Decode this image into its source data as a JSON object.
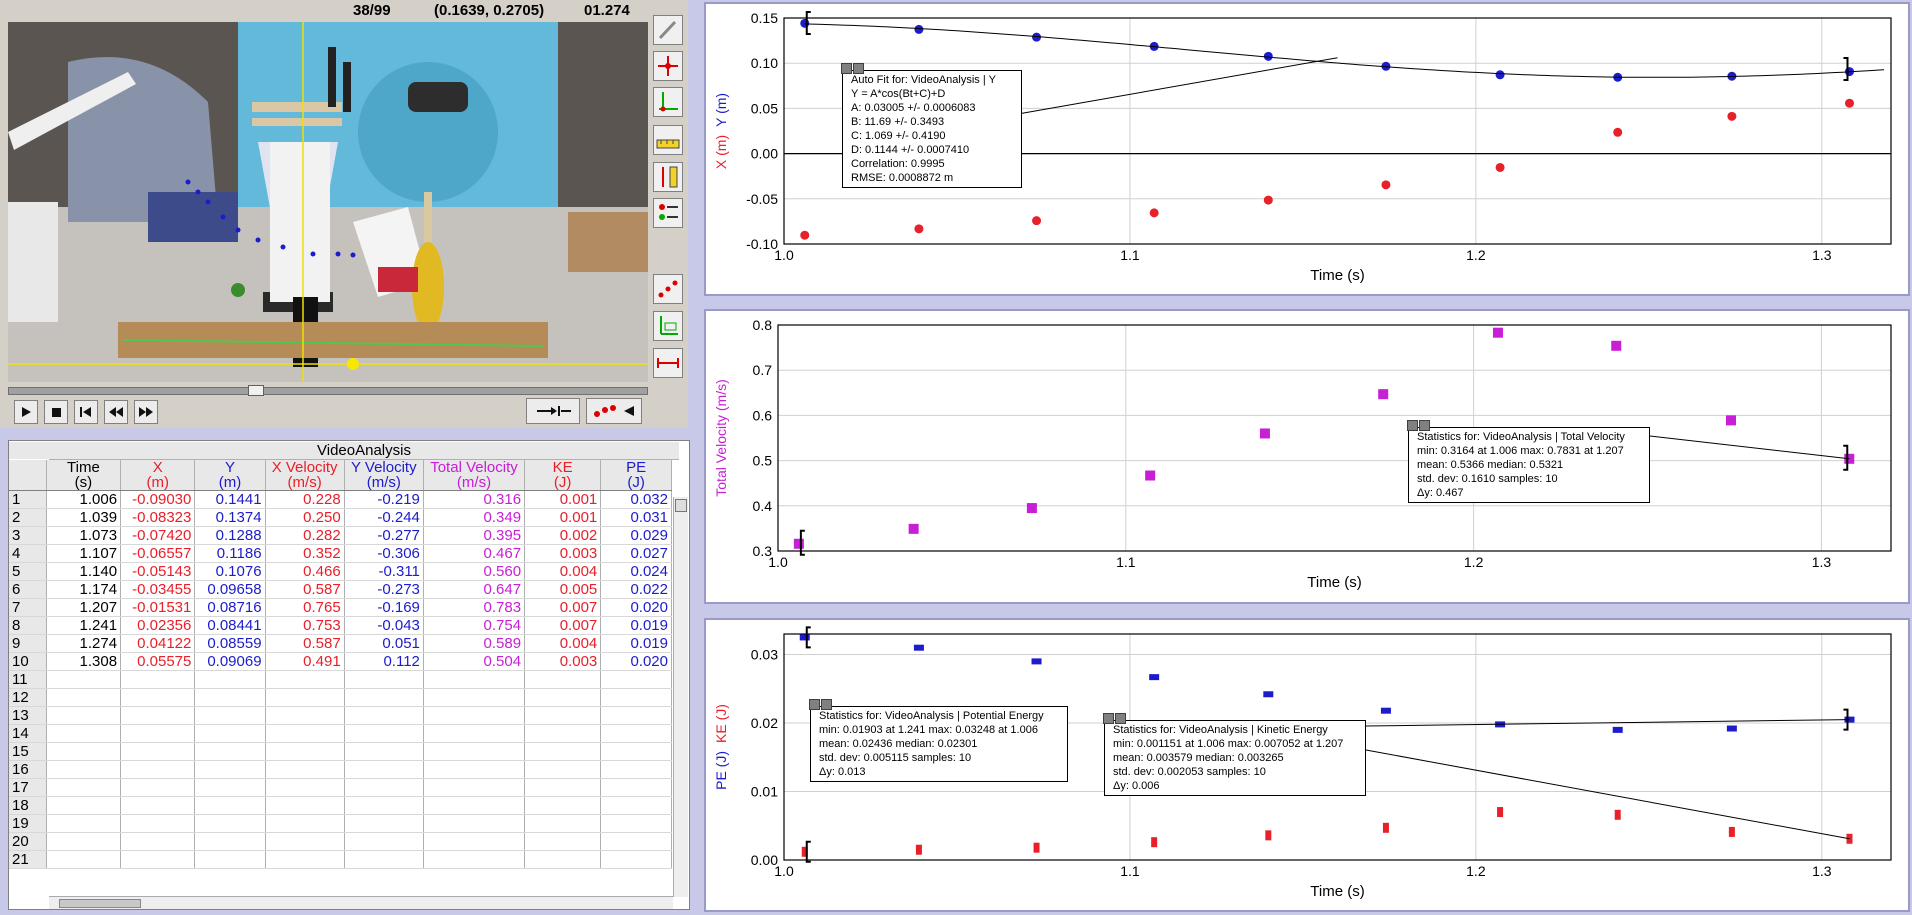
{
  "video": {
    "frame_counter": "38/99",
    "coordinates": "(0.1639, 0.2705)",
    "time": "01.274",
    "tools": [
      "select-arrow-icon",
      "add-point-icon",
      "set-origin-icon",
      "set-scale-icon",
      "double-scale-icon",
      "options-icon",
      "show-points-icon",
      "show-axes-icon",
      "show-scale-icon"
    ]
  },
  "table": {
    "title": "VideoAnalysis",
    "columns": [
      {
        "name": "Time",
        "unit": "(s)"
      },
      {
        "name": "X",
        "unit": "(m)"
      },
      {
        "name": "Y",
        "unit": "(m)"
      },
      {
        "name": "X Velocity",
        "unit": "(m/s)"
      },
      {
        "name": "Y Velocity",
        "unit": "(m/s)"
      },
      {
        "name": "Total Velocity",
        "unit": "(m/s)"
      },
      {
        "name": "KE",
        "unit": "(J)"
      },
      {
        "name": "PE",
        "unit": "(J)"
      }
    ],
    "rows": [
      [
        "1",
        "1.006",
        "-0.09030",
        "0.1441",
        "0.228",
        "-0.219",
        "0.316",
        "0.001",
        "0.032"
      ],
      [
        "2",
        "1.039",
        "-0.08323",
        "0.1374",
        "0.250",
        "-0.244",
        "0.349",
        "0.001",
        "0.031"
      ],
      [
        "3",
        "1.073",
        "-0.07420",
        "0.1288",
        "0.282",
        "-0.277",
        "0.395",
        "0.002",
        "0.029"
      ],
      [
        "4",
        "1.107",
        "-0.06557",
        "0.1186",
        "0.352",
        "-0.306",
        "0.467",
        "0.003",
        "0.027"
      ],
      [
        "5",
        "1.140",
        "-0.05143",
        "0.1076",
        "0.466",
        "-0.311",
        "0.560",
        "0.004",
        "0.024"
      ],
      [
        "6",
        "1.174",
        "-0.03455",
        "0.09658",
        "0.587",
        "-0.273",
        "0.647",
        "0.005",
        "0.022"
      ],
      [
        "7",
        "1.207",
        "-0.01531",
        "0.08716",
        "0.765",
        "-0.169",
        "0.783",
        "0.007",
        "0.020"
      ],
      [
        "8",
        "1.241",
        "0.02356",
        "0.08441",
        "0.753",
        "-0.043",
        "0.754",
        "0.007",
        "0.019"
      ],
      [
        "9",
        "1.274",
        "0.04122",
        "0.08559",
        "0.587",
        "0.051",
        "0.589",
        "0.004",
        "0.019"
      ],
      [
        "10",
        "1.308",
        "0.05575",
        "0.09069",
        "0.491",
        "0.112",
        "0.504",
        "0.003",
        "0.020"
      ],
      [
        "11",
        "",
        "",
        "",
        "",
        "",
        "",
        "",
        ""
      ],
      [
        "12",
        "",
        "",
        "",
        "",
        "",
        "",
        "",
        ""
      ],
      [
        "13",
        "",
        "",
        "",
        "",
        "",
        "",
        "",
        ""
      ],
      [
        "14",
        "",
        "",
        "",
        "",
        "",
        "",
        "",
        ""
      ],
      [
        "15",
        "",
        "",
        "",
        "",
        "",
        "",
        "",
        ""
      ],
      [
        "16",
        "",
        "",
        "",
        "",
        "",
        "",
        "",
        ""
      ],
      [
        "17",
        "",
        "",
        "",
        "",
        "",
        "",
        "",
        ""
      ],
      [
        "18",
        "",
        "",
        "",
        "",
        "",
        "",
        "",
        ""
      ],
      [
        "19",
        "",
        "",
        "",
        "",
        "",
        "",
        "",
        ""
      ],
      [
        "20",
        "",
        "",
        "",
        "",
        "",
        "",
        "",
        ""
      ],
      [
        "21",
        "",
        "",
        "",
        "",
        "",
        "",
        "",
        ""
      ]
    ]
  },
  "popups": {
    "fit": [
      "Auto Fit for: VideoAnalysis | Y",
      "Y = A*cos(Bt+C)+D",
      "A: 0.03005 +/- 0.0006083",
      "B: 11.69 +/- 0.3493",
      "C: 1.069 +/- 0.4190",
      "D: 0.1144 +/- 0.0007410",
      "Correlation: 0.9995",
      "RMSE: 0.0008872 m"
    ],
    "tv_stats": [
      "Statistics for: VideoAnalysis | Total Velocity",
      "min: 0.3164 at 1.006 max: 0.7831 at 1.207",
      "mean: 0.5366 median: 0.5321",
      "std. dev: 0.1610 samples: 10",
      "Δy: 0.467"
    ],
    "pe_stats": [
      "Statistics for: VideoAnalysis | Potential Energy",
      "min: 0.01903 at 1.241 max: 0.03248 at 1.006",
      "mean: 0.02436 median: 0.02301",
      "std. dev: 0.005115 samples: 10",
      "Δy: 0.013"
    ],
    "ke_stats": [
      "Statistics for: VideoAnalysis | Kinetic Energy",
      "min: 0.001151 at 1.006 max: 0.007052 at 1.207",
      "mean: 0.003579 median: 0.003265",
      "std. dev: 0.002053 samples: 10",
      "Δy: 0.006"
    ]
  },
  "colors": {
    "x": "#e8202a",
    "y": "#1c1ccc",
    "tv": "#c81ed6",
    "ke": "#e8202a",
    "pe": "#1c1ccc"
  },
  "chart_data": [
    {
      "type": "scatter",
      "xlabel": "Time (s)",
      "ylabel_parts": [
        "X (m)",
        "Y (m)"
      ],
      "xlim": [
        1.0,
        1.32
      ],
      "ylim": [
        -0.1,
        0.15
      ],
      "xticks": [
        "1.0",
        "1.1",
        "1.2",
        "1.3"
      ],
      "yticks": [
        "-0.10",
        "-0.05",
        "0.00",
        "0.05",
        "0.10",
        "0.15"
      ],
      "x": [
        1.006,
        1.039,
        1.073,
        1.107,
        1.14,
        1.174,
        1.207,
        1.241,
        1.274,
        1.308
      ],
      "series": [
        {
          "name": "X",
          "values": [
            -0.0903,
            -0.08323,
            -0.0742,
            -0.06557,
            -0.05143,
            -0.03455,
            -0.01531,
            0.02356,
            0.04122,
            0.05575
          ]
        },
        {
          "name": "Y",
          "values": [
            0.1441,
            0.1374,
            0.1288,
            0.1186,
            0.1076,
            0.09658,
            0.08716,
            0.08441,
            0.08559,
            0.09069
          ]
        }
      ],
      "fit": {
        "A": 0.03005,
        "B": 11.69,
        "C": 1.069,
        "D": 0.1144
      }
    },
    {
      "type": "scatter",
      "xlabel": "Time (s)",
      "ylabel": "Total Velocity (m/s)",
      "xlim": [
        1.0,
        1.32
      ],
      "ylim": [
        0.3,
        0.8
      ],
      "xticks": [
        "1.0",
        "1.1",
        "1.2",
        "1.3"
      ],
      "yticks": [
        "0.3",
        "0.4",
        "0.5",
        "0.6",
        "0.7",
        "0.8"
      ],
      "x": [
        1.006,
        1.039,
        1.073,
        1.107,
        1.14,
        1.174,
        1.207,
        1.241,
        1.274,
        1.308
      ],
      "series": [
        {
          "name": "Total Velocity",
          "values": [
            0.316,
            0.349,
            0.395,
            0.467,
            0.56,
            0.647,
            0.783,
            0.754,
            0.589,
            0.504
          ]
        }
      ]
    },
    {
      "type": "scatter",
      "xlabel": "Time (s)",
      "ylabel_parts": [
        "PE (J)",
        "KE (J)"
      ],
      "xlim": [
        1.0,
        1.32
      ],
      "ylim": [
        0.0,
        0.033
      ],
      "xticks": [
        "1.0",
        "1.1",
        "1.2",
        "1.3"
      ],
      "yticks": [
        "0.00",
        "0.01",
        "0.02",
        "0.03"
      ],
      "x": [
        1.006,
        1.039,
        1.073,
        1.107,
        1.14,
        1.174,
        1.207,
        1.241,
        1.274,
        1.308
      ],
      "series": [
        {
          "name": "PE",
          "values": [
            0.0325,
            0.031,
            0.029,
            0.0267,
            0.0242,
            0.0218,
            0.0198,
            0.019,
            0.0192,
            0.0205
          ]
        },
        {
          "name": "KE",
          "values": [
            0.0012,
            0.0015,
            0.0018,
            0.0026,
            0.0036,
            0.0047,
            0.007,
            0.0066,
            0.0041,
            0.0031
          ]
        }
      ]
    }
  ]
}
